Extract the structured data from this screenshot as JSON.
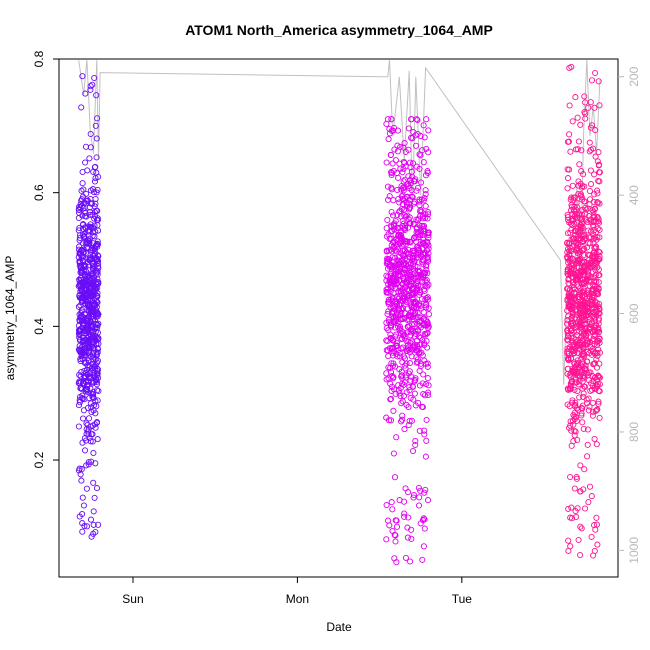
{
  "chart_data": {
    "type": "scatter",
    "title": "ATOM1 North_America asymmetry_1064_AMP",
    "xlabel": "Date",
    "ylabel": "asymmetry_1064_AMP",
    "x_ticks": [
      {
        "label": "Sun",
        "value": 1.0
      },
      {
        "label": "Mon",
        "value": 2.0
      },
      {
        "label": "Tue",
        "value": 3.0
      }
    ],
    "xlim": [
      0.55,
      3.95
    ],
    "ylim": [
      0.025,
      0.8
    ],
    "y_ticks": [
      0.2,
      0.4,
      0.6,
      0.8
    ],
    "y2_ticks": [
      200,
      400,
      600,
      800,
      1000
    ],
    "y2lim": [
      170,
      1045
    ],
    "grid": false,
    "series": [
      {
        "color": "#6A0DF8",
        "x_range": [
          0.67,
          0.79
        ],
        "y_center": 0.43,
        "y_spread": 0.095,
        "y_min": 0.08,
        "y_max": 0.78,
        "count": 700
      },
      {
        "color": "#E000F0",
        "x_range": [
          2.54,
          2.8
        ],
        "y_center": 0.46,
        "y_spread": 0.1,
        "y_min": 0.045,
        "y_max": 0.71,
        "count": 900
      },
      {
        "color": "#FF1493",
        "x_range": [
          3.64,
          3.84
        ],
        "y_center": 0.44,
        "y_spread": 0.1,
        "y_min": 0.055,
        "y_max": 0.79,
        "count": 900
      }
    ],
    "secondary_line": {
      "color": "#c0c0c0",
      "description_hidden": true,
      "points": [
        [
          0.67,
          172
        ],
        [
          0.7,
          230
        ],
        [
          0.72,
          172
        ],
        [
          0.74,
          290
        ],
        [
          0.76,
          330
        ],
        [
          0.78,
          172
        ],
        [
          0.79,
          340
        ],
        [
          0.8,
          193
        ],
        [
          2.55,
          200
        ],
        [
          2.56,
          172
        ],
        [
          2.58,
          300
        ],
        [
          2.62,
          200
        ],
        [
          2.65,
          340
        ],
        [
          2.68,
          190
        ],
        [
          2.7,
          420
        ],
        [
          2.72,
          200
        ],
        [
          2.75,
          400
        ],
        [
          2.78,
          185
        ],
        [
          3.6,
          510
        ],
        [
          3.62,
          720
        ],
        [
          3.65,
          480
        ],
        [
          3.68,
          640
        ],
        [
          3.7,
          380
        ],
        [
          3.72,
          560
        ],
        [
          3.74,
          300
        ],
        [
          3.76,
          172
        ],
        [
          3.78,
          300
        ],
        [
          3.8,
          250
        ],
        [
          3.82,
          330
        ],
        [
          3.84,
          205
        ]
      ]
    }
  }
}
